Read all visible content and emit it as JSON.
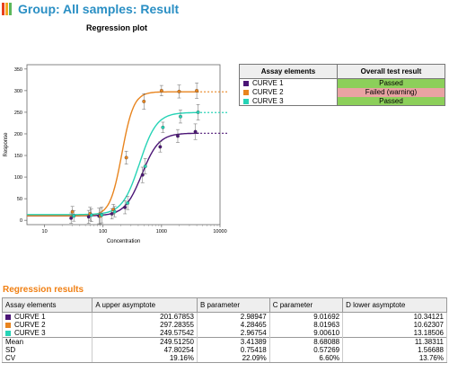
{
  "header": {
    "title": "Group: All samples: Result",
    "icon": "bar-chart-icon",
    "icon_colors": [
      "#e8401c",
      "#f5a623",
      "#5cb85c"
    ]
  },
  "plot": {
    "title": "Regression plot"
  },
  "chart_data": {
    "type": "scatter",
    "title": "Regression plot",
    "xlabel": "Concentration",
    "ylabel": "Response",
    "x_scale": "log",
    "xlim": [
      5,
      10000
    ],
    "ylim": [
      -10,
      360
    ],
    "x_ticks": [
      10,
      100,
      1000,
      10000
    ],
    "x_tick_labels": [
      "10",
      "100",
      "1000",
      "10000"
    ],
    "y_ticks": [
      0,
      50,
      100,
      150,
      200,
      250,
      300,
      350
    ],
    "y_tick_labels": [
      "0",
      "50",
      "100",
      "150",
      "200",
      "250",
      "300",
      "350"
    ],
    "grid": false,
    "x": [
      30,
      60,
      90,
      150,
      250,
      500,
      1000,
      2000,
      4000
    ],
    "series": [
      {
        "name": "CURVE 1",
        "color": "#4b1576",
        "values": [
          5,
          8,
          10,
          15,
          30,
          105,
          170,
          195,
          205
        ],
        "fit": {
          "top": 201.67853,
          "slope": 2.98947,
          "ec50": 9.01692,
          "bottom": 10.34121,
          "ec50_concentration": 460
        },
        "fit_extension_to": 4500
      },
      {
        "name": "CURVE 2",
        "color": "#e8841e",
        "values": [
          20,
          15,
          10,
          25,
          145,
          275,
          300,
          298,
          300
        ],
        "fit": {
          "top": 297.28355,
          "slope": 4.28465,
          "ec50": 8.01963,
          "bottom": 10.62307,
          "ec50_concentration": 210
        },
        "fit_extension_to": 4500
      },
      {
        "name": "CURVE 3",
        "color": "#26d3b6",
        "values": [
          10,
          12,
          12,
          20,
          40,
          125,
          215,
          240,
          250
        ],
        "fit": {
          "top": 249.57542,
          "slope": 2.96754,
          "ec50": 9.0061,
          "bottom": 13.18506,
          "ec50_concentration": 420
        },
        "fit_extension_to": 4500
      }
    ]
  },
  "assay_table": {
    "headers": [
      "Assay elements",
      "Overall test result"
    ],
    "rows": [
      {
        "name": "CURVE 1",
        "color": "#4b1576",
        "result": "Passed",
        "result_color": "#8ccf5a"
      },
      {
        "name": "CURVE 2",
        "color": "#e8841e",
        "result": "Failed (warning)",
        "result_color": "#e9a3a3"
      },
      {
        "name": "CURVE 3",
        "color": "#26d3b6",
        "result": "Passed",
        "result_color": "#8ccf5a"
      }
    ]
  },
  "regression": {
    "section_title": "Regression results",
    "headers": [
      "Assay elements",
      "A upper asymptote",
      "B parameter",
      "C parameter",
      "D lower asymptote"
    ],
    "rows": [
      {
        "name": "CURVE 1",
        "color": "#4b1576",
        "values": [
          "201.67853",
          "2.98947",
          "9.01692",
          "10.34121"
        ]
      },
      {
        "name": "CURVE 2",
        "color": "#e8841e",
        "values": [
          "297.28355",
          "4.28465",
          "8.01963",
          "10.62307"
        ]
      },
      {
        "name": "CURVE 3",
        "color": "#26d3b6",
        "values": [
          "249.57542",
          "2.96754",
          "9.00610",
          "13.18506"
        ]
      }
    ],
    "stats": [
      {
        "name": "Mean",
        "values": [
          "249.51250",
          "3.41389",
          "8.68088",
          "11.38311"
        ]
      },
      {
        "name": "SD",
        "values": [
          "47.80254",
          "0.75418",
          "0.57269",
          "1.56688"
        ]
      },
      {
        "name": "CV",
        "values": [
          "19.16%",
          "22.09%",
          "6.60%",
          "13.76%"
        ]
      }
    ]
  }
}
